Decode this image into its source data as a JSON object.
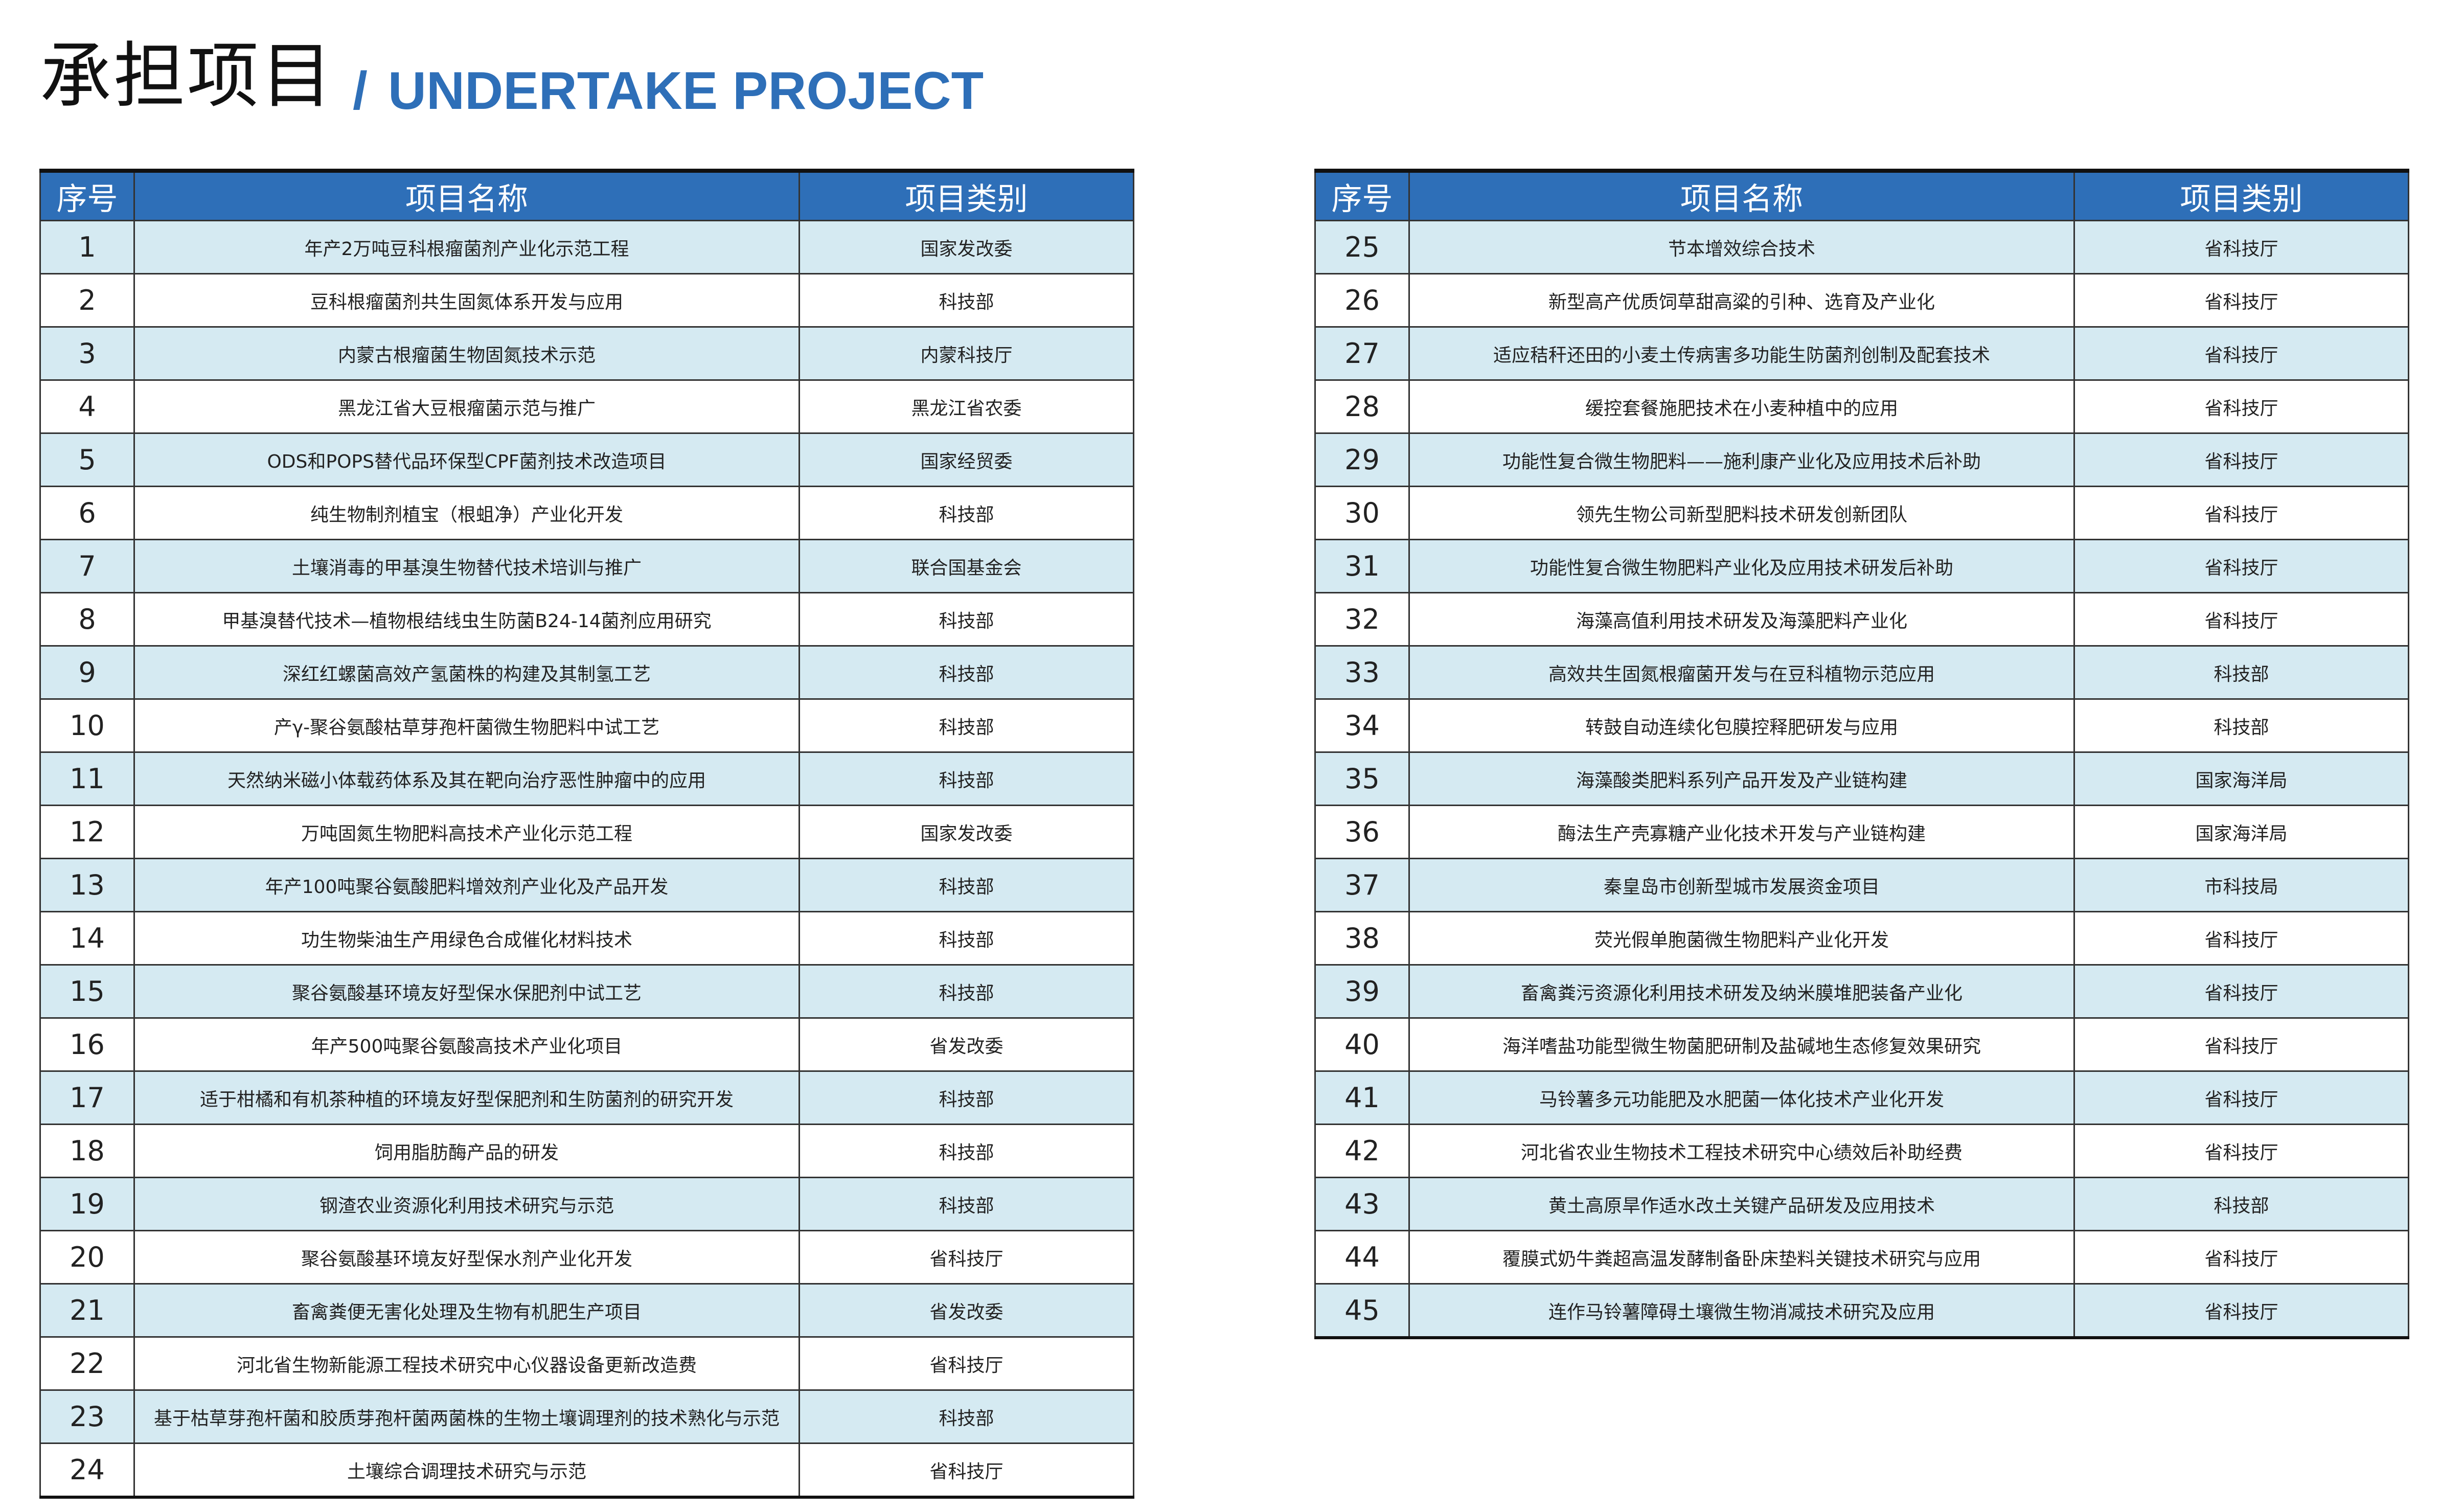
{
  "header": {
    "title_zh": "承担项目",
    "slash": "/",
    "title_en": "UNDERTAKE PROJECT"
  },
  "colors": {
    "accent": "#2e6fb8",
    "row_alt": "#d5eaf2"
  },
  "columns": [
    "序号",
    "项目名称",
    "项目类别"
  ],
  "left_rows": [
    [
      "1",
      "年产2万吨豆科根瘤菌剂产业化示范工程",
      "国家发改委"
    ],
    [
      "2",
      "豆科根瘤菌剂共生固氮体系开发与应用",
      "科技部"
    ],
    [
      "3",
      "内蒙古根瘤菌生物固氮技术示范",
      "内蒙科技厅"
    ],
    [
      "4",
      "黑龙江省大豆根瘤菌示范与推广",
      "黑龙江省农委"
    ],
    [
      "5",
      "ODS和POPS替代品环保型CPF菌剂技术改造项目",
      "国家经贸委"
    ],
    [
      "6",
      "纯生物制剂植宝（根蛆净）产业化开发",
      "科技部"
    ],
    [
      "7",
      "土壤消毒的甲基溴生物替代技术培训与推广",
      "联合国基金会"
    ],
    [
      "8",
      "甲基溴替代技术—植物根结线虫生防菌B24-14菌剂应用研究",
      "科技部"
    ],
    [
      "9",
      "深红红螺菌高效产氢菌株的构建及其制氢工艺",
      "科技部"
    ],
    [
      "10",
      "产γ-聚谷氨酸枯草芽孢杆菌微生物肥料中试工艺",
      "科技部"
    ],
    [
      "11",
      "天然纳米磁小体载药体系及其在靶向治疗恶性肿瘤中的应用",
      "科技部"
    ],
    [
      "12",
      "万吨固氮生物肥料高技术产业化示范工程",
      "国家发改委"
    ],
    [
      "13",
      "年产100吨聚谷氨酸肥料增效剂产业化及产品开发",
      "科技部"
    ],
    [
      "14",
      "功生物柴油生产用绿色合成催化材料技术",
      "科技部"
    ],
    [
      "15",
      "聚谷氨酸基环境友好型保水保肥剂中试工艺",
      "科技部"
    ],
    [
      "16",
      "年产500吨聚谷氨酸高技术产业化项目",
      "省发改委"
    ],
    [
      "17",
      "适于柑橘和有机茶种植的环境友好型保肥剂和生防菌剂的研究开发",
      "科技部"
    ],
    [
      "18",
      "饲用脂肪酶产品的研发",
      "科技部"
    ],
    [
      "19",
      "钢渣农业资源化利用技术研究与示范",
      "科技部"
    ],
    [
      "20",
      "聚谷氨酸基环境友好型保水剂产业化开发",
      "省科技厅"
    ],
    [
      "21",
      "畜禽粪便无害化处理及生物有机肥生产项目",
      "省发改委"
    ],
    [
      "22",
      "河北省生物新能源工程技术研究中心仪器设备更新改造费",
      "省科技厅"
    ],
    [
      "23",
      "基于枯草芽孢杆菌和胶质芽孢杆菌两菌株的生物土壤调理剂的技术熟化与示范",
      "科技部"
    ],
    [
      "24",
      "土壤综合调理技术研究与示范",
      "省科技厅"
    ]
  ],
  "right_rows": [
    [
      "25",
      "节本增效综合技术",
      "省科技厅"
    ],
    [
      "26",
      "新型高产优质饲草甜高粱的引种、选育及产业化",
      "省科技厅"
    ],
    [
      "27",
      "适应秸秆还田的小麦土传病害多功能生防菌剂创制及配套技术",
      "省科技厅"
    ],
    [
      "28",
      "缓控套餐施肥技术在小麦种植中的应用",
      "省科技厅"
    ],
    [
      "29",
      "功能性复合微生物肥料——施利康产业化及应用技术后补助",
      "省科技厅"
    ],
    [
      "30",
      "领先生物公司新型肥料技术研发创新团队",
      "省科技厅"
    ],
    [
      "31",
      "功能性复合微生物肥料产业化及应用技术研发后补助",
      "省科技厅"
    ],
    [
      "32",
      "海藻高值利用技术研发及海藻肥料产业化",
      "省科技厅"
    ],
    [
      "33",
      "高效共生固氮根瘤菌开发与在豆科植物示范应用",
      "科技部"
    ],
    [
      "34",
      "转鼓自动连续化包膜控释肥研发与应用",
      "科技部"
    ],
    [
      "35",
      "海藻酸类肥料系列产品开发及产业链构建",
      "国家海洋局"
    ],
    [
      "36",
      "酶法生产壳寡糖产业化技术开发与产业链构建",
      "国家海洋局"
    ],
    [
      "37",
      "秦皇岛市创新型城市发展资金项目",
      "市科技局"
    ],
    [
      "38",
      "荧光假单胞菌微生物肥料产业化开发",
      "省科技厅"
    ],
    [
      "39",
      "畜禽粪污资源化利用技术研发及纳米膜堆肥装备产业化",
      "省科技厅"
    ],
    [
      "40",
      "海洋嗜盐功能型微生物菌肥研制及盐碱地生态修复效果研究",
      "省科技厅"
    ],
    [
      "41",
      "马铃薯多元功能肥及水肥菌一体化技术产业化开发",
      "省科技厅"
    ],
    [
      "42",
      "河北省农业生物技术工程技术研究中心绩效后补助经费",
      "省科技厅"
    ],
    [
      "43",
      "黄土高原旱作适水改土关键产品研发及应用技术",
      "科技部"
    ],
    [
      "44",
      "覆膜式奶牛粪超高温发酵制备卧床垫料关键技术研究与应用",
      "省科技厅"
    ],
    [
      "45",
      "连作马铃薯障碍土壤微生物消减技术研究及应用",
      "省科技厅"
    ]
  ]
}
